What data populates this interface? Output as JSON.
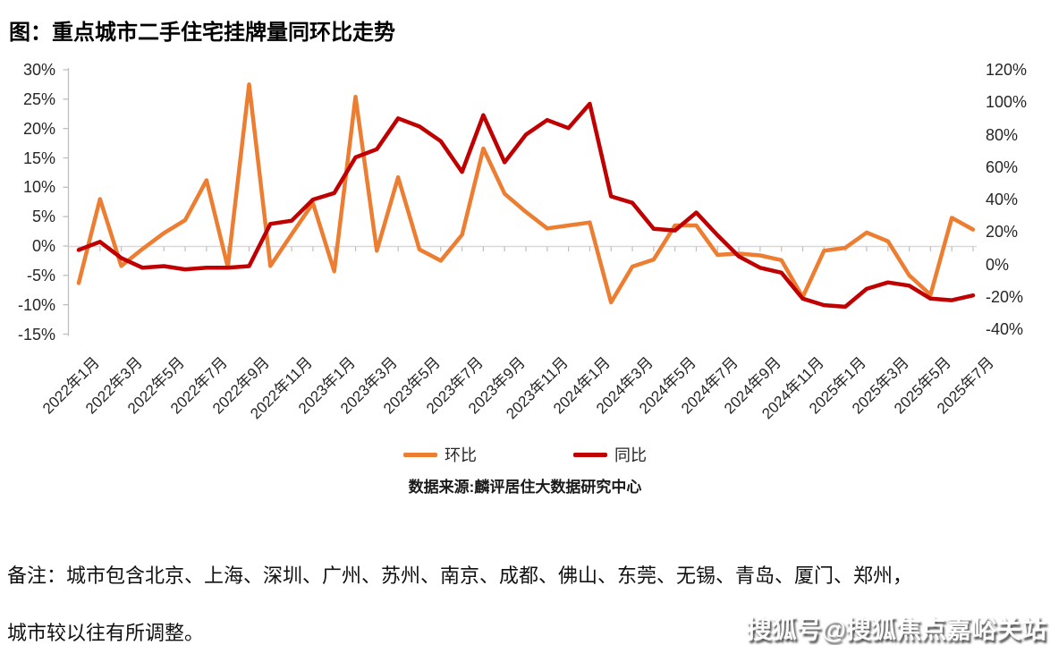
{
  "page": {
    "title": "图：重点城市二手住宅挂牌量同环比走势",
    "source": "数据来源:麟评居住大数据研究中心",
    "note_line1": "备注：城市包含北京、上海、深圳、广州、苏州、南京、成都、佛山、东莞、无锡、青岛、厦门、郑州，",
    "note_line2": "城市较以往有所调整。",
    "watermark": "搜狐号@搜狐焦点嘉峪关站"
  },
  "chart_data": {
    "type": "line",
    "title": "图：重点城市二手住宅挂牌量同环比走势",
    "grid": "zero-line-only",
    "categories": [
      "2022年1月",
      "2022年2月",
      "2022年3月",
      "2022年4月",
      "2022年5月",
      "2022年6月",
      "2022年7月",
      "2022年8月",
      "2022年9月",
      "2022年10月",
      "2022年11月",
      "2022年12月",
      "2023年1月",
      "2023年2月",
      "2023年3月",
      "2023年4月",
      "2023年5月",
      "2023年6月",
      "2023年7月",
      "2023年8月",
      "2023年9月",
      "2023年10月",
      "2023年11月",
      "2023年12月",
      "2024年1月",
      "2024年2月",
      "2024年3月",
      "2024年4月",
      "2024年5月",
      "2024年6月",
      "2024年7月",
      "2024年8月",
      "2024年9月",
      "2024年10月",
      "2024年11月",
      "2024年12月",
      "2025年1月",
      "2025年2月",
      "2025年3月",
      "2025年4月",
      "2025年5月",
      "2025年6月",
      "2025年7月"
    ],
    "x_tick_labels": [
      "2022年1月",
      "2022年3月",
      "2022年5月",
      "2022年7月",
      "2022年9月",
      "2022年11月",
      "2023年1月",
      "2023年3月",
      "2023年5月",
      "2023年7月",
      "2023年9月",
      "2023年11月",
      "2024年1月",
      "2024年3月",
      "2024年5月",
      "2024年7月",
      "2024年9月",
      "2024年11月",
      "2025年1月",
      "2025年3月",
      "2025年5月",
      "2025年7月"
    ],
    "series": [
      {
        "name": "环比",
        "axis": "left",
        "unit": "%",
        "color": "#ED7D31",
        "values": [
          -6.3,
          8.0,
          -3.4,
          -0.5,
          2.2,
          4.4,
          11.2,
          -3.6,
          27.5,
          -3.4,
          2.0,
          7.3,
          -4.3,
          25.4,
          -0.8,
          11.7,
          -0.6,
          -2.5,
          1.9,
          16.6,
          8.9,
          5.8,
          3.0,
          3.5,
          4.0,
          -9.6,
          -3.5,
          -2.3,
          3.5,
          3.5,
          -1.5,
          -1.3,
          -1.6,
          -2.4,
          -8.7,
          -0.8,
          -0.3,
          2.3,
          0.8,
          -5.0,
          -8.3,
          4.8,
          2.8
        ]
      },
      {
        "name": "同比",
        "axis": "right",
        "unit": "%",
        "color": "#C00000",
        "values": [
          9,
          14,
          4,
          -2,
          -1,
          -3,
          -2,
          -2,
          -1,
          25,
          27,
          40,
          44,
          66,
          71,
          90,
          85,
          76,
          57,
          92,
          63,
          80,
          89,
          84,
          99,
          42,
          38,
          22,
          21,
          32,
          18,
          5,
          -2,
          -5,
          -21,
          -25,
          -26,
          -15,
          -11,
          -13,
          -21,
          -22,
          -19
        ]
      }
    ],
    "axes": {
      "left": {
        "min": -15,
        "max": 30,
        "step": 5,
        "tick_labels": [
          "30%",
          "25%",
          "20%",
          "15%",
          "10%",
          "5%",
          "0%",
          "-5%",
          "-10%",
          "-15%"
        ]
      },
      "right": {
        "min": -40,
        "max": 120,
        "step": 20,
        "tick_labels": [
          "120%",
          "100%",
          "80%",
          "60%",
          "40%",
          "20%",
          "0%",
          "-20%",
          "-40%"
        ]
      }
    },
    "legend": {
      "position": "bottom-center",
      "entries": [
        "环比",
        "同比"
      ]
    },
    "source": "数据来源:麟评居住大数据研究中心",
    "colors": {
      "axis_line": "#BFBFBF",
      "zero_line": "#D9D9D9",
      "tick_text": "#262626"
    }
  }
}
